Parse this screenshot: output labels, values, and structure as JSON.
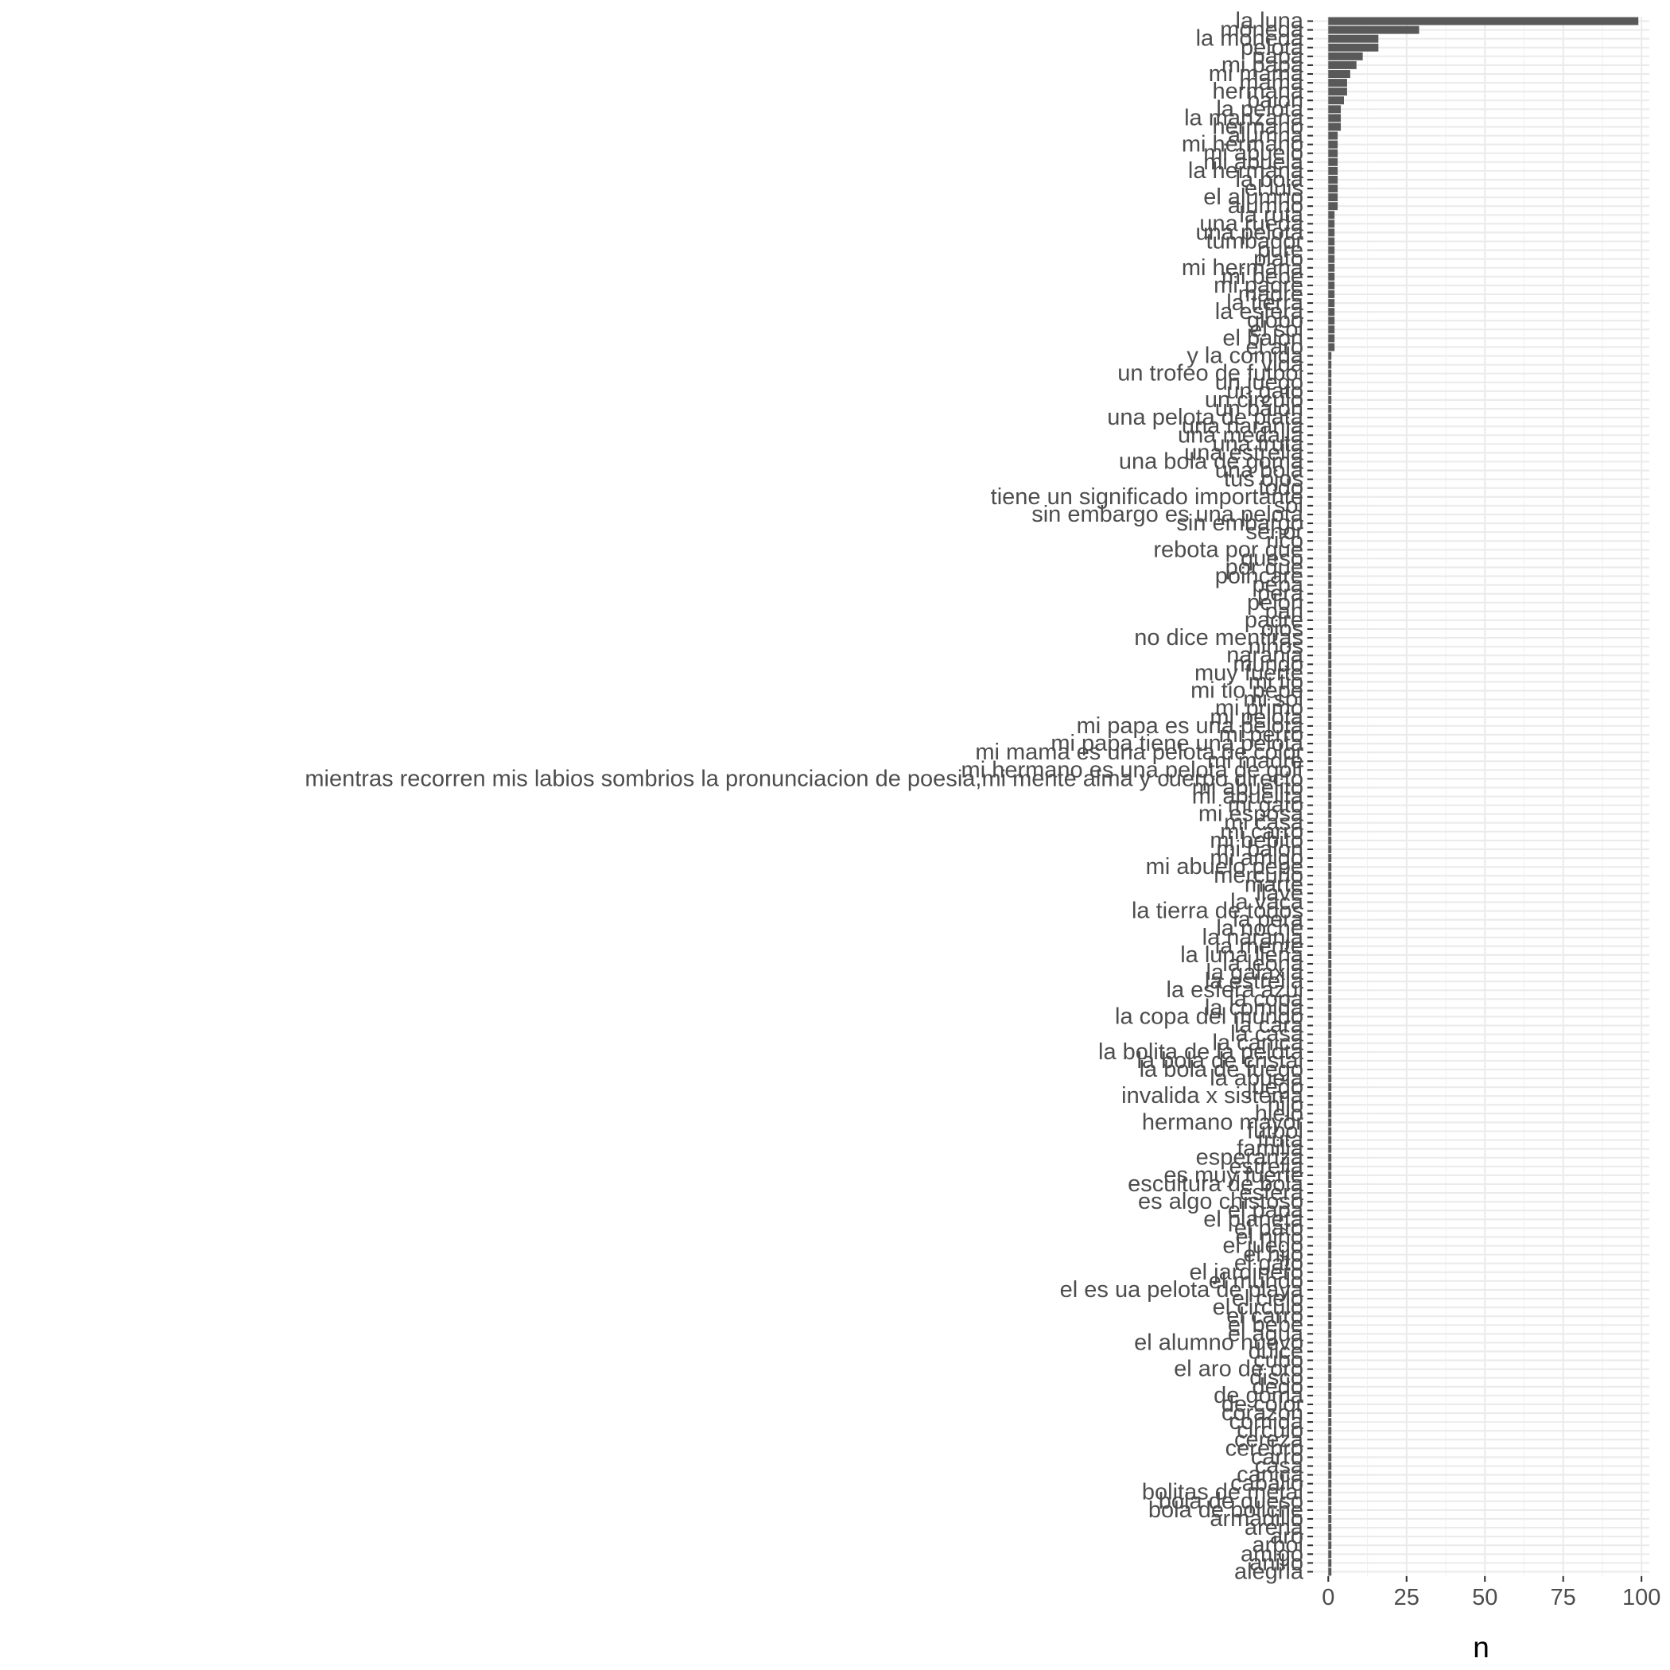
{
  "chart_data": {
    "type": "bar",
    "orientation": "horizontal",
    "xlabel": "n",
    "ylabel": "",
    "xlim": [
      -4.9,
      102.5
    ],
    "xticks": [
      0,
      25,
      50,
      75,
      100
    ],
    "xtick_labels": [
      "0",
      "25",
      "50",
      "75",
      "100"
    ],
    "grid": true,
    "legend": "none",
    "colors": {
      "bar": "#595959",
      "panel": "#ffffff",
      "grid": "#ebebeb"
    },
    "categories": [
      "la luna",
      "moneda",
      "la moneda",
      "pelota",
      "papa",
      "mi papa",
      "mi mama",
      "mama",
      "hermana",
      "balon",
      "la pelota",
      "la manzana",
      "hermano",
      "alumna",
      "mi hermano",
      "mi abuelo",
      "mi abuela",
      "la hermana",
      "la bola",
      "el luis",
      "el alumno",
      "alumno",
      "la ruta",
      "una rueda",
      "una pelota",
      "tumbador",
      "pure",
      "plato",
      "mi hermana",
      "mi bebe",
      "mi padre",
      "madre",
      "la tierra",
      "la esfera",
      "globo",
      "el sol",
      "el balon",
      "el aro",
      "y la comida",
      "vida",
      "un trofeo de futbol",
      "un juego",
      "un gato",
      "un circulo",
      "un balon",
      "una pelota de plata",
      "una naranja",
      "una medalla",
      "una fruta",
      "una estrella",
      "una bola de goma",
      "una bola",
      "tus ojos",
      "todo",
      "tiene un significado importante",
      "sol",
      "sin embargo es una pelota",
      "sin embargo",
      "senor",
      "rico",
      "rebota por que",
      "queso",
      "por que",
      "poincare",
      "pepa",
      "pera",
      "pelon",
      "pan",
      "padre",
      "ojos",
      "no dice mentiras",
      "ninos",
      "naranja",
      "mundo",
      "muy fuerte",
      "mi tio",
      "mi tio pepe",
      "mi sol",
      "mi primo",
      "mi pelota",
      "mi papa es una pelota",
      "mi perro",
      "mi papa tiene una pelota",
      "mi mama es una pelota de color",
      "mi madre",
      "mi hermano es una pelota de golf",
      "mientras recorren mis labios sombrios la pronunciacion de poesia,mi mente alma y cuerpo directo",
      "mi abuelito",
      "mi abuelita",
      "mi gato",
      "mi esposa",
      "mi casa",
      "mi carro",
      "mi bebito",
      "mi balon",
      "mi amigo",
      "mi abuelo pepe",
      "mercurio",
      "marte",
      "llave",
      "la vaca",
      "la tierra de todos",
      "la pera",
      "la noche",
      "la naranja",
      "la mente",
      "la luna llena",
      "la leona",
      "la galaxia",
      "la estrella",
      "la esfera azul",
      "la copa",
      "la comida",
      "la copa del mundo",
      "la cara",
      "la casa",
      "la canica",
      "la bolita de la pelota",
      "la bola de cristal",
      "la bola de fuego",
      "la abuela",
      "juego",
      "invalida x sistema",
      "hijo",
      "hielo",
      "hermano mayor",
      "futbol",
      "fruta",
      "familia",
      "esperanza",
      "estrella",
      "es muy fuerte",
      "escultura de bola",
      "esfera",
      "es algo chistoso",
      "el papa",
      "el planeta",
      "el pato",
      "el niño",
      "el juego",
      "el hijo",
      "el gato",
      "el jardinero",
      "el mundo",
      "el es ua pelota de playa",
      "el cielo",
      "el circulo",
      "el carro",
      "el bebe",
      "el agua",
      "el alumno nuevo",
      "dulce",
      "cubo",
      "el aro de oro",
      "disco",
      "dedo",
      "de goma",
      "de color",
      "corazon",
      "comida",
      "circulo",
      "cereza",
      "cerebro",
      "carro",
      "casa",
      "canica",
      "caballo",
      "bolitas de metal",
      "bola de queso",
      "bola de boliche",
      "armadillo",
      "arena",
      "aro",
      "arbol",
      "amigo",
      "anillo",
      "alegria"
    ],
    "values": [
      99,
      29,
      16,
      16,
      11,
      9,
      7,
      6,
      6,
      5,
      4,
      4,
      4,
      3,
      3,
      3,
      3,
      3,
      3,
      3,
      3,
      3,
      2,
      2,
      2,
      2,
      2,
      2,
      2,
      2,
      2,
      2,
      2,
      2,
      2,
      2,
      2,
      2,
      1,
      1,
      1,
      1,
      1,
      1,
      1,
      1,
      1,
      1,
      1,
      1,
      1,
      1,
      1,
      1,
      1,
      1,
      1,
      1,
      1,
      1,
      1,
      1,
      1,
      1,
      1,
      1,
      1,
      1,
      1,
      1,
      1,
      1,
      1,
      1,
      1,
      1,
      1,
      1,
      1,
      1,
      1,
      1,
      1,
      1,
      1,
      1,
      1,
      1,
      1,
      1,
      1,
      1,
      1,
      1,
      1,
      1,
      1,
      1,
      1,
      1,
      1,
      1,
      1,
      1,
      1,
      1,
      1,
      1,
      1,
      1,
      1,
      1,
      1,
      1,
      1,
      1,
      1,
      1,
      1,
      1,
      1,
      1,
      1,
      1,
      1,
      1,
      1,
      1,
      1,
      1,
      1,
      1,
      1,
      1,
      1,
      1,
      1,
      1,
      1,
      1,
      1,
      1,
      1,
      1,
      1,
      1,
      1,
      1,
      1,
      1,
      1,
      1,
      1,
      1,
      1,
      1,
      1,
      1,
      1,
      1,
      1,
      1,
      1,
      1,
      1,
      1,
      1,
      1,
      1,
      1,
      1,
      1,
      1,
      1,
      1,
      1,
      1
    ]
  }
}
